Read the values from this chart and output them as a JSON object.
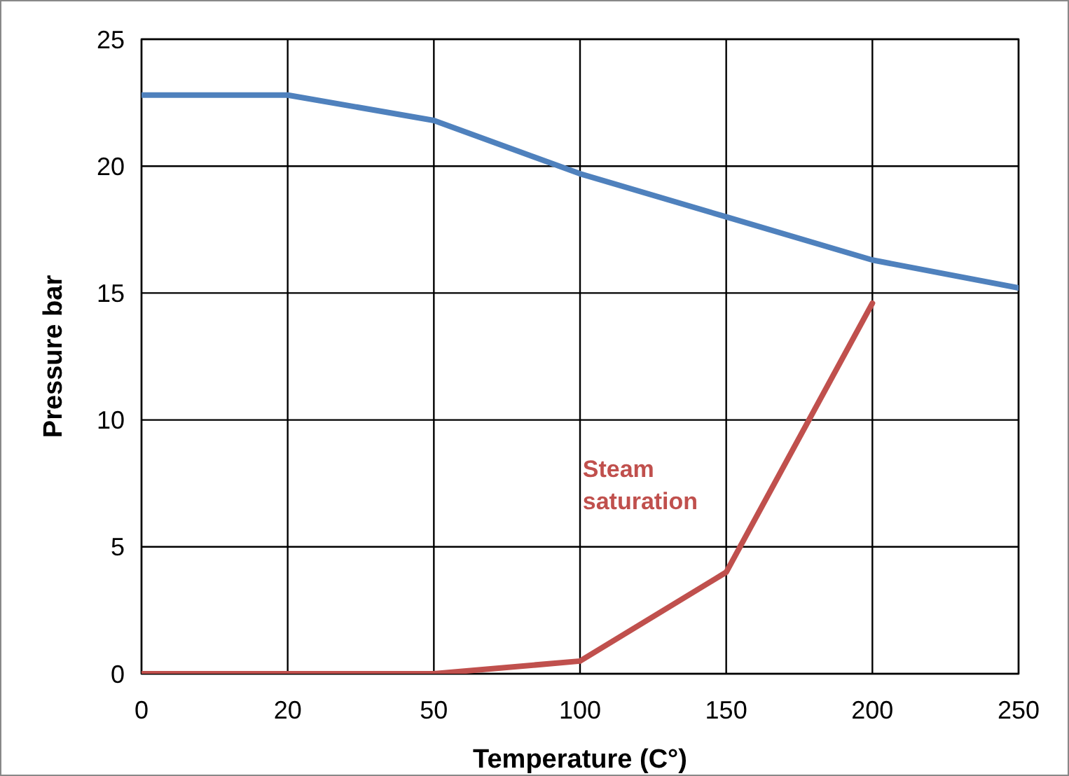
{
  "chart_data": {
    "type": "line",
    "xlabel": "Temperature (C°)",
    "ylabel": "Pressure bar",
    "categories": [
      "0",
      "20",
      "50",
      "100",
      "150",
      "200",
      "250"
    ],
    "series": [
      {
        "color": "#4f81bd",
        "values": [
          22.8,
          22.8,
          21.8,
          19.7,
          18.0,
          16.3,
          15.2
        ]
      },
      {
        "color": "#c0504d",
        "values": [
          0,
          0,
          0,
          0.5,
          4.0,
          14.6,
          null
        ]
      }
    ],
    "ylim": [
      0,
      25
    ],
    "yticks": [
      0,
      5,
      10,
      15,
      20,
      25
    ],
    "grid": true,
    "line_style": "solid",
    "annotations": [
      "Steam saturation"
    ]
  }
}
